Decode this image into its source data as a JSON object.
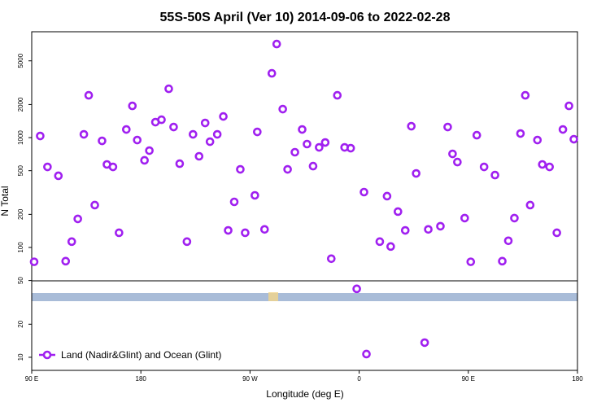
{
  "chart_data": {
    "type": "scatter",
    "title": "55S-50S April (Ver 10)   2014-09-06 to 2022-02-28",
    "x_label": "Longitude (deg E)",
    "y_label": "N Total",
    "log_y": true,
    "legend": "bottom-left",
    "xlim": [
      90,
      540
    ],
    "xticks": [
      {
        "value": 90,
        "label": "90 E"
      },
      180,
      {
        "value": 270,
        "label": "90 W"
      },
      {
        "value": 360,
        "label": "0"
      },
      {
        "value": 450,
        "label": "90 E"
      },
      {
        "value": 540,
        "label": "180"
      }
    ],
    "ylim": [
      7.6,
      9200
    ],
    "yticks": [
      10,
      20,
      50,
      100,
      200,
      500,
      1000,
      2000,
      5000
    ],
    "x": [
      92,
      97,
      103,
      112,
      118,
      123,
      128,
      133,
      137,
      142,
      148,
      152,
      157,
      162,
      168,
      173,
      177,
      183,
      187,
      192,
      197,
      203,
      207,
      212,
      218,
      223,
      228,
      233,
      237,
      243,
      248,
      252,
      257,
      262,
      266,
      274,
      276,
      282,
      288,
      292,
      297,
      301,
      307,
      313,
      317,
      322,
      327,
      332,
      337,
      342,
      348,
      353,
      358,
      364,
      366,
      377,
      383,
      386,
      392,
      398,
      403,
      407,
      414,
      417,
      427,
      433,
      437,
      441,
      447,
      452,
      457,
      463,
      472,
      478,
      483,
      488,
      493,
      497,
      501,
      507,
      511,
      517,
      523,
      528,
      533,
      537
    ],
    "series": [
      {
        "name": "Land (Nadir&Glint) and Ocean (Glint)",
        "color": "#a020f0",
        "values": [
          74,
          1035,
          541,
          449,
          75,
          113,
          182,
          1071,
          2427,
          243,
          934,
          570,
          541,
          136,
          1186,
          1944,
          950,
          621,
          761,
          1383,
          1455,
          2782,
          1249,
          579,
          113,
          1071,
          676,
          1360,
          918,
          1071,
          1558,
          143,
          260,
          514,
          136,
          298,
          1127,
          146,
          3847,
          7112,
          1817,
          514,
          736,
          1186,
          873,
          550,
          815,
          903,
          79,
          2427,
          815,
          801,
          42,
          319,
          10.7,
          113,
          293,
          102,
          212,
          143,
          1270,
          472,
          13.6,
          146,
          156,
          1249,
          711,
          599,
          185,
          74,
          1052,
          541,
          456,
          75,
          115,
          185,
          1089,
          2427,
          243,
          950,
          570,
          541,
          136,
          1186,
          1944,
          967
        ]
      }
    ]
  }
}
